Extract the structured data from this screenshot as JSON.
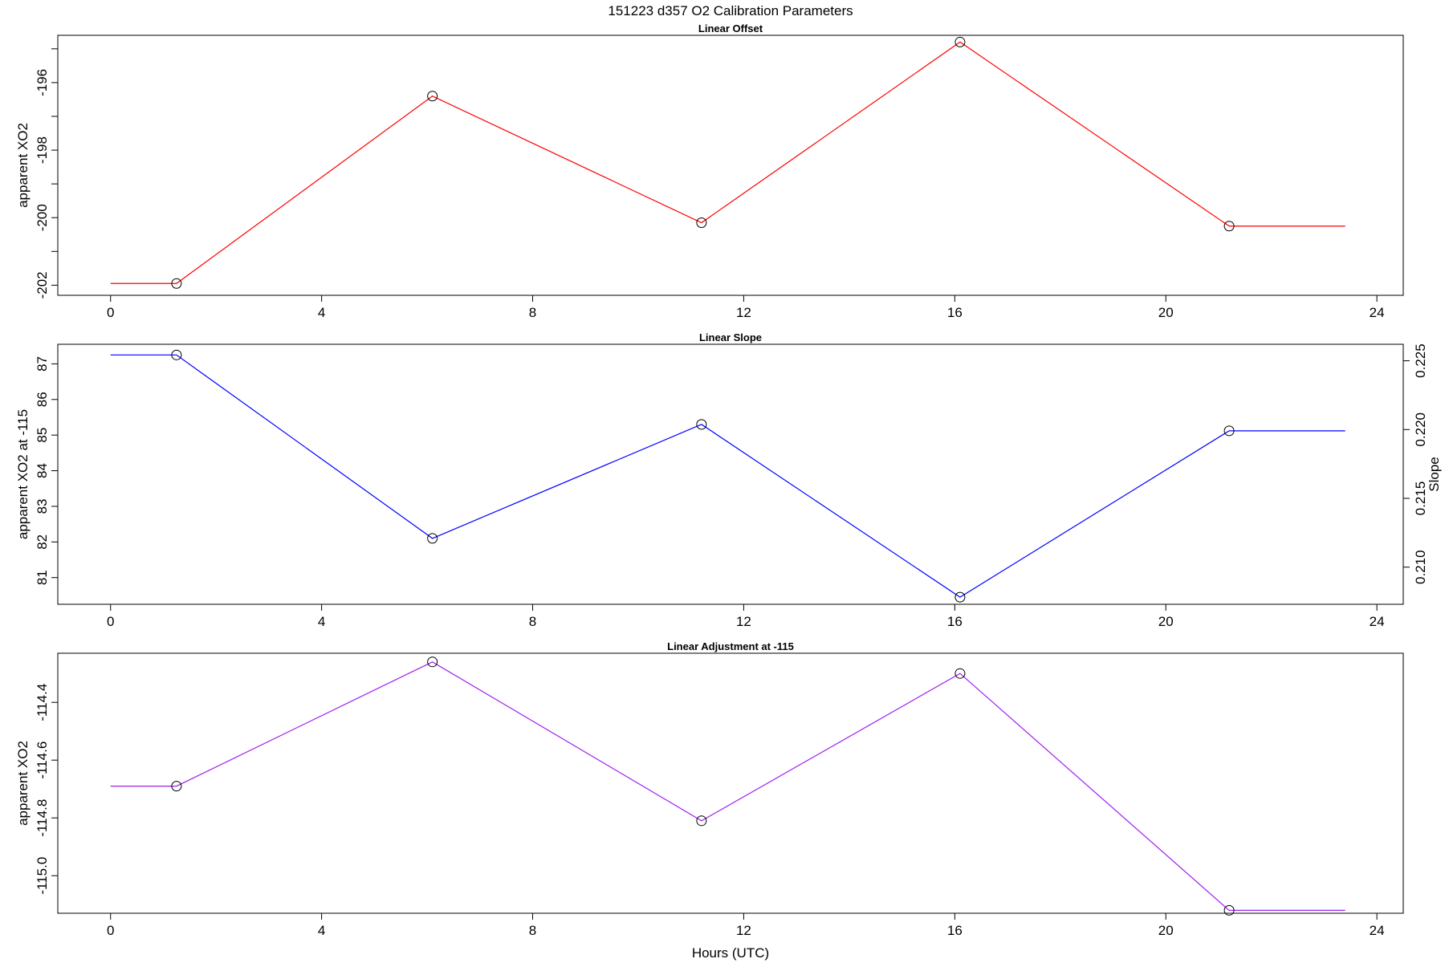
{
  "figure": {
    "title": "151223   d357   O2 Calibration Parameters",
    "xlabel": "Hours (UTC)"
  },
  "chart_data": [
    {
      "type": "line",
      "title": "Linear Offset",
      "xlabel": "",
      "ylabel": "apparent XO2",
      "xlim": [
        -1,
        24.5
      ],
      "ylim": [
        -202.3,
        -194.6
      ],
      "xticks": [
        0,
        4,
        8,
        12,
        16,
        20,
        24
      ],
      "yticks": [
        -202,
        -200,
        -198,
        -196
      ],
      "yticks_minor": [
        -201,
        -199,
        -197,
        -195
      ],
      "color": "#ff0000",
      "x": [
        0,
        1.25,
        6.1,
        11.2,
        16.1,
        21.2,
        23.4
      ],
      "y": [
        -201.95,
        -201.95,
        -196.4,
        -200.15,
        -194.8,
        -200.25,
        -200.25
      ],
      "markers": [
        1,
        2,
        3,
        4,
        5
      ],
      "grid": false,
      "legend": "none"
    },
    {
      "type": "line",
      "title": "Linear Slope",
      "xlabel": "",
      "ylabel": "apparent XO2 at -115",
      "y2label": "Slope",
      "xlim": [
        -1,
        24.5
      ],
      "ylim": [
        80.25,
        87.55
      ],
      "xticks": [
        0,
        4,
        8,
        12,
        16,
        20,
        24
      ],
      "yticks": [
        81,
        82,
        83,
        84,
        85,
        86,
        87
      ],
      "y2ticks": [
        "0.210",
        "0.215",
        "0.220",
        "0.225"
      ],
      "y2lim": [
        0.2073,
        0.2262
      ],
      "color": "#0000ff",
      "x": [
        0,
        1.25,
        6.1,
        11.2,
        16.1,
        21.2,
        23.4
      ],
      "y": [
        87.25,
        87.25,
        82.1,
        85.3,
        80.45,
        85.12,
        85.12
      ],
      "markers": [
        1,
        2,
        3,
        4,
        5
      ],
      "grid": false,
      "legend": "none"
    },
    {
      "type": "line",
      "title": "Linear Adjustment at -115",
      "xlabel": "Hours (UTC)",
      "ylabel": "apparent XO2",
      "xlim": [
        -1,
        24.5
      ],
      "ylim": [
        -115.13,
        -114.23
      ],
      "xticks": [
        0,
        4,
        8,
        12,
        16,
        20,
        24
      ],
      "yticks": [
        "-115.0",
        "-114.8",
        "-114.6",
        "-114.4"
      ],
      "color": "#a020f0",
      "x": [
        0,
        1.25,
        6.1,
        11.2,
        16.1,
        21.2,
        23.4
      ],
      "y": [
        -114.69,
        -114.69,
        -114.26,
        -114.81,
        -114.3,
        -115.12,
        -115.12
      ],
      "markers": [
        1,
        2,
        3,
        4,
        5
      ],
      "grid": false,
      "legend": "none"
    }
  ]
}
